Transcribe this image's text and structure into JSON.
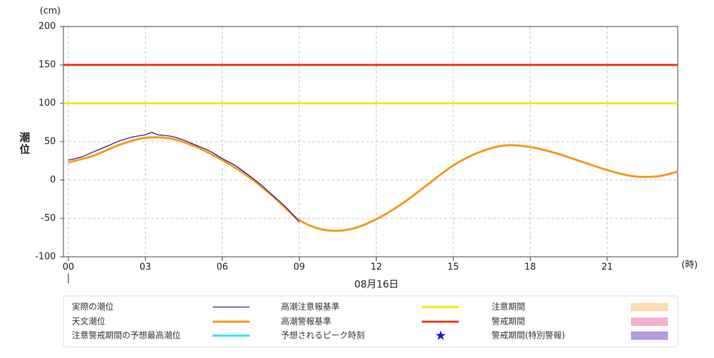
{
  "chart_data": {
    "type": "line",
    "y_unit": "(cm)",
    "x_unit": "(時)",
    "y_label": "潮位",
    "date_label": "08月16日",
    "xlim": [
      -0.19,
      23.75
    ],
    "ylim": [
      -100,
      200
    ],
    "xticks": [
      {
        "value": 0,
        "label": "00"
      },
      {
        "value": 3,
        "label": "03"
      },
      {
        "value": 6,
        "label": "06"
      },
      {
        "value": 9,
        "label": "09"
      },
      12,
      15,
      18,
      21
    ],
    "yticks": [
      -100,
      -50,
      0,
      50,
      100,
      150,
      200
    ],
    "grid": true,
    "series": [
      {
        "name": "実際の潮位",
        "color": "#3d1a8c",
        "width": 1.3,
        "x": [
          0,
          0.5,
          1,
          1.5,
          2,
          2.5,
          3,
          3.25,
          3.5,
          4,
          4.5,
          5,
          5.5,
          6,
          6.5,
          7,
          7.5,
          8,
          8.5,
          9
        ],
        "values": [
          26,
          30,
          37,
          44,
          51,
          56,
          59,
          62,
          59,
          57,
          52,
          45,
          38,
          28,
          19,
          7,
          -6,
          -21,
          -36,
          -55
        ]
      },
      {
        "name": "天文潮位",
        "color": "#f39a1f",
        "width": 3,
        "x": [
          0,
          1,
          2,
          3,
          4,
          5,
          6,
          7,
          8,
          9,
          10,
          11,
          12,
          13,
          14,
          15,
          16,
          17,
          18,
          19,
          20,
          21,
          22,
          23,
          23.75
        ],
        "values": [
          23,
          32,
          46,
          55,
          54,
          43,
          26,
          5,
          -22,
          -52,
          -65,
          -64,
          -51,
          -31,
          -6,
          19,
          36,
          45,
          43,
          35,
          24,
          13,
          5,
          5,
          11
        ]
      }
    ],
    "reference_lines": [
      {
        "name": "高潮注意報基準",
        "color": "#f5e21b",
        "value": 100
      },
      {
        "name": "高潮警報基準",
        "color": "#e5361a",
        "value": 150
      }
    ],
    "legend_extra": [
      {
        "name": "注意警戒期間の予想最高潮位",
        "color": "#22e6f0",
        "symbol": "line"
      },
      {
        "name": "予想されるピーク時刻",
        "color": "#1020d8",
        "symbol": "star"
      },
      {
        "name": "注意期間",
        "color": "#fcdcb0",
        "symbol": "box"
      },
      {
        "name": "警戒期間",
        "color": "#f7b0cc",
        "symbol": "box"
      },
      {
        "name": "警戒期間(特別警報)",
        "color": "#b59be0",
        "symbol": "box"
      }
    ]
  }
}
